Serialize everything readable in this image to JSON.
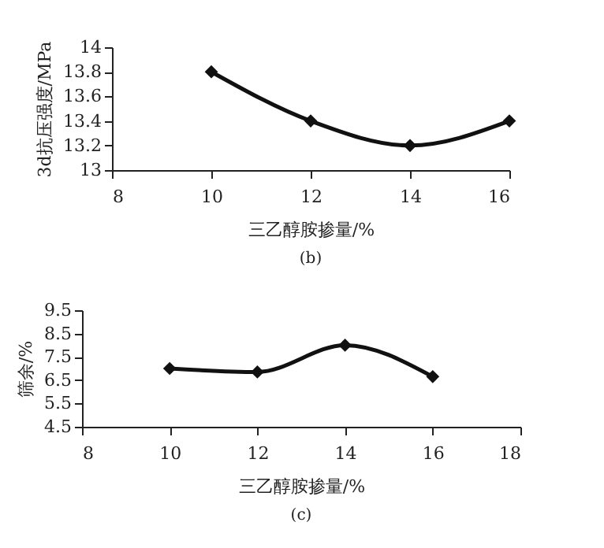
{
  "chart_data": [
    {
      "type": "line",
      "xlabel": "三乙醇胺掺量/%",
      "ylabel": "3d抗压强度/MPa",
      "annotations": [
        "(b)"
      ],
      "x": [
        10,
        12,
        14,
        16
      ],
      "series": [
        {
          "color": "#111111",
          "values": [
            13.8,
            13.4,
            13.2,
            13.4
          ]
        }
      ],
      "xlim": [
        8,
        16
      ],
      "xticks": [
        8,
        10,
        12,
        14,
        16
      ],
      "ylim": [
        13,
        14
      ],
      "yticks": [
        13,
        13.2,
        13.4,
        13.6,
        13.8,
        14
      ],
      "marker": "diamond",
      "line_style": "solid"
    },
    {
      "type": "line",
      "xlabel": "三乙醇胺掺量/%",
      "ylabel": "筛余/%",
      "annotations": [
        "(c)"
      ],
      "x": [
        10,
        12,
        14,
        16
      ],
      "series": [
        {
          "color": "#111111",
          "values": [
            7.0,
            6.85,
            8.0,
            6.65
          ]
        }
      ],
      "xlim": [
        8,
        18
      ],
      "xticks": [
        8,
        10,
        12,
        14,
        16,
        18
      ],
      "ylim": [
        4.5,
        9.5
      ],
      "yticks": [
        4.5,
        5.5,
        6.5,
        7.5,
        8.5,
        9.5
      ],
      "marker": "diamond",
      "line_style": "solid"
    }
  ]
}
